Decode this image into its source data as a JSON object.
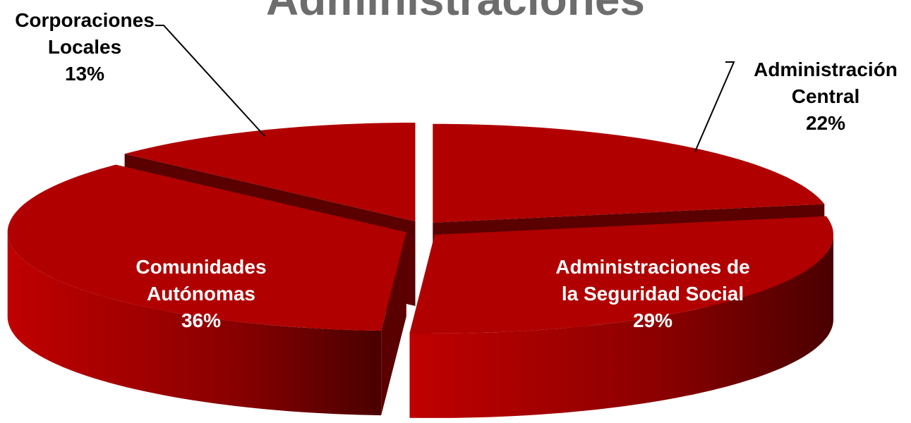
{
  "chart_data": {
    "type": "pie",
    "title": "Administraciones",
    "categories": [
      "Administración Central",
      "Administraciones de la Seguridad Social",
      "Comunidades Autónomas",
      "Corporaciones Locales"
    ],
    "values": [
      22,
      29,
      36,
      13
    ],
    "value_labels": [
      "22%",
      "29%",
      "36%",
      "13%"
    ],
    "color": "#b00000"
  }
}
